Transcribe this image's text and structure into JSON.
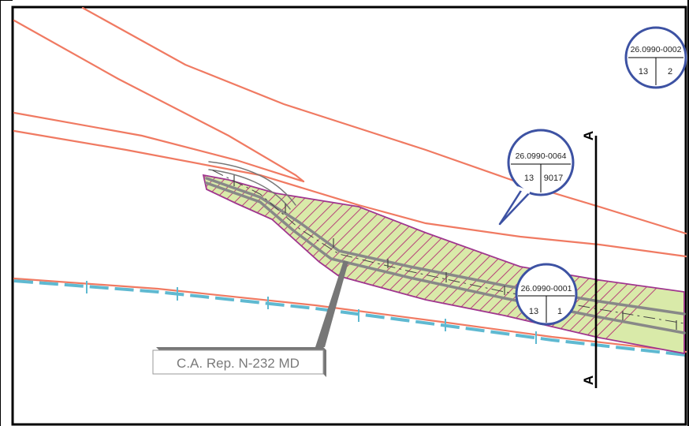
{
  "map": {
    "parcels": [
      {
        "ref": "26.0990-0002",
        "sheet": "13",
        "number": "2"
      },
      {
        "ref": "26.0990-0064",
        "sheet": "13",
        "number": "9017"
      },
      {
        "ref": "26.0990-0001",
        "sheet": "13",
        "number": "1"
      }
    ],
    "road_label": "C.A. Rep. N-232 MD",
    "section_letter": "A",
    "colors": {
      "boundary": "#f07a62",
      "area_fill": "#d9eaa9",
      "area_border": "#a0368f",
      "hatch": "#b8457a",
      "road": "#888888",
      "bubble_stroke": "#3d52a3",
      "dashed_axis": "#5fb9d1",
      "frame": "#000000"
    }
  }
}
